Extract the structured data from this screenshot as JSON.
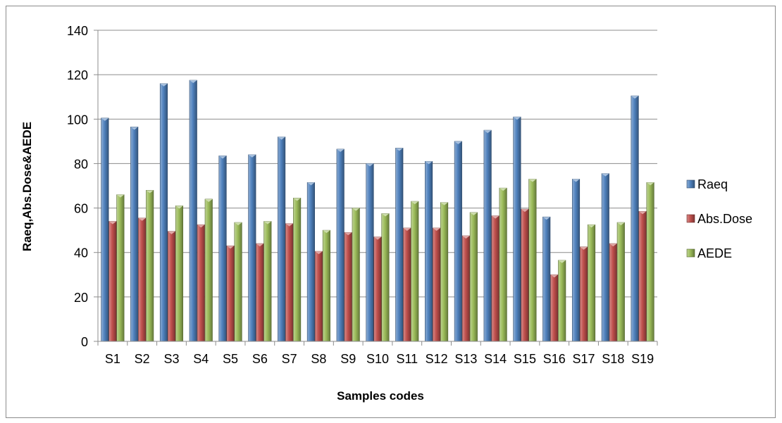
{
  "chart_data": {
    "type": "bar",
    "title": "",
    "xlabel": "Samples codes",
    "ylabel": "Raeq,Abs.Dose&AEDE",
    "ylim": [
      0,
      140
    ],
    "yticks": [
      0,
      20,
      40,
      60,
      80,
      100,
      120,
      140
    ],
    "grid": true,
    "legend_position": "right",
    "categories": [
      "S1",
      "S2",
      "S3",
      "S4",
      "S5",
      "S6",
      "S7",
      "S8",
      "S9",
      "S10",
      "S11",
      "S12",
      "S13",
      "S14",
      "S15",
      "S16",
      "S17",
      "S18",
      "S19"
    ],
    "series": [
      {
        "name": "Raeq",
        "color": "#4f81bd",
        "values": [
          100.5,
          96.5,
          116,
          117.5,
          83.5,
          84,
          92,
          71.5,
          86.5,
          80,
          87,
          81,
          90,
          95,
          101,
          56,
          73,
          75.5,
          110.5
        ]
      },
      {
        "name": "Abs.Dose",
        "color": "#c0504d",
        "values": [
          54,
          55.5,
          49.5,
          52.5,
          43,
          44,
          53,
          40.5,
          49,
          47,
          51,
          51,
          47.5,
          56.5,
          59.5,
          30,
          42.5,
          44,
          58.5
        ]
      },
      {
        "name": "AEDE",
        "color": "#9bbb59",
        "values": [
          66,
          68,
          61,
          64,
          53.5,
          54,
          64.5,
          50,
          60,
          57.5,
          63,
          62.5,
          58,
          69,
          73,
          36.5,
          52.5,
          53.5,
          71.5
        ]
      }
    ]
  }
}
